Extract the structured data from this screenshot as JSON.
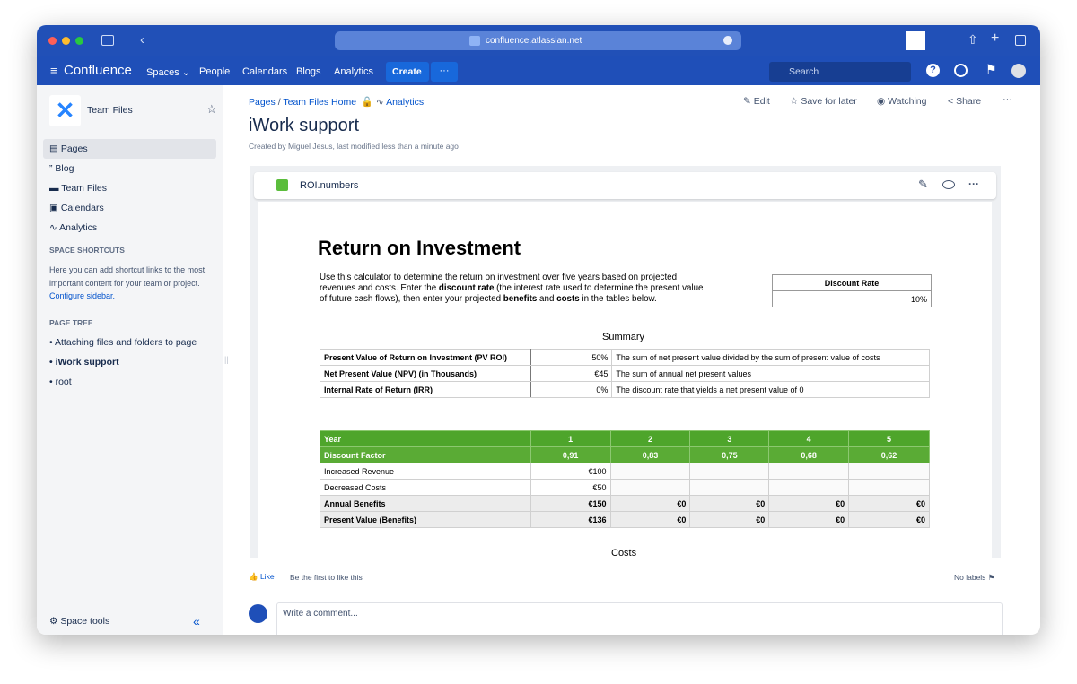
{
  "browser": {
    "url": "confluence.atlassian.net"
  },
  "nav": {
    "logo": "Confluence",
    "items": [
      "Spaces",
      "People",
      "Calendars",
      "Blogs",
      "Analytics"
    ],
    "create": "Create",
    "search": "Search"
  },
  "sidebar": {
    "space": "Team Files",
    "items": [
      "Pages",
      "Blog",
      "Team Files",
      "Calendars",
      "Analytics"
    ],
    "shortcuts_heading": "SPACE SHORTCUTS",
    "shortcuts_text": "Here you can add shortcut links to the most important content for your team or project.",
    "configure": "Configure sidebar.",
    "tree_heading": "PAGE TREE",
    "tree": [
      "Attaching files and folders to page",
      "iWork support",
      "root"
    ],
    "space_tools": "Space tools"
  },
  "page": {
    "breadcrumbs": [
      "Pages",
      "Team Files Home",
      "Analytics"
    ],
    "actions": [
      "Edit",
      "Save for later",
      "Watching",
      "Share"
    ],
    "title": "iWork support",
    "byline": "Created by Miguel Jesus, last modified less than a minute ago"
  },
  "attachment": {
    "filename": "ROI.numbers",
    "heading": "Return on Investment",
    "intro": [
      "Use this calculator to determine the return on investment over five years based on projected revenues and costs. Enter the ",
      "discount rate",
      " (the interest rate used to determine the present value of future cash flows), then enter your projected ",
      "benefits",
      " and ",
      "costs",
      " in the tables below."
    ],
    "discount": {
      "label": "Discount Rate",
      "value": "10%"
    },
    "summary": {
      "title": "Summary",
      "rows": [
        [
          "Present Value of Return on Investment (PV ROI)",
          "50%",
          "The sum of net present value divided by the sum of present value of costs"
        ],
        [
          "Net Present Value (NPV) (in Thousands)",
          "€45",
          "The sum of annual net present values"
        ],
        [
          "Internal Rate of Return (IRR)",
          "0%",
          "The discount rate that yields a net present value of 0"
        ]
      ]
    },
    "benefits": {
      "rows": [
        [
          "Year",
          "1",
          "2",
          "3",
          "4",
          "5"
        ],
        [
          "Discount Factor",
          "0,91",
          "0,83",
          "0,75",
          "0,68",
          "0,62"
        ],
        [
          "Increased Revenue",
          "€100",
          null,
          null,
          null,
          null
        ],
        [
          "Decreased Costs",
          "€50",
          null,
          null,
          null,
          null
        ],
        [
          "Annual Benefits",
          "€150",
          "€0",
          "€0",
          "€0",
          "€0"
        ],
        [
          "Present Value (Benefits)",
          "€136",
          "€0",
          "€0",
          "€0",
          "€0"
        ]
      ]
    },
    "costs_title": "Costs"
  },
  "footer": {
    "like": "Like",
    "like_text": "Be the first to like this",
    "labels": "No labels",
    "comment": "Write a comment..."
  }
}
